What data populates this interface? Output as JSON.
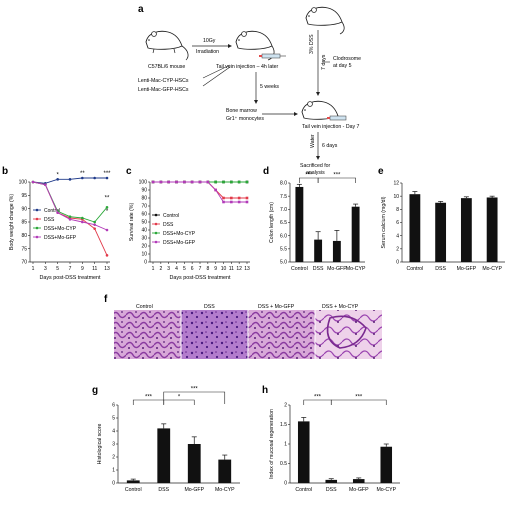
{
  "panel_labels": {
    "a": "a",
    "b": "b",
    "c": "c",
    "d": "d",
    "e": "e",
    "f": "f",
    "g": "g",
    "h": "h"
  },
  "schematic": {
    "mouse_strain": "C57BL/6 mouse",
    "dose": "10Gy",
    "irradiation": "Irradiation",
    "injection": "Tail vein injection – 4h later",
    "hsc_cyp": "Lenti-Mac-CYP-HSCs",
    "hsc_gfp": "Lenti-Mac-GFP-HSCs",
    "weeks": "5 weeks",
    "bone_marrow": "Bone marrow",
    "monocytes": "Gr1⁺ monocytes",
    "dss": "3% DSS",
    "days7": "7 days",
    "clodrosome": "Clodrosome",
    "clodrosome_day": "at day 5",
    "injection_day7": "Tail vein injection - Day 7",
    "water": "Water",
    "days6": "6 days",
    "sacrificed": "Sacrificed for",
    "analysis": "analysis"
  },
  "histology": {
    "labels": [
      "Control",
      "DSS",
      "DSS + Mo-GFP",
      "DSS + Mo-CYP"
    ]
  },
  "chart_data": [
    {
      "id": "b",
      "type": "line",
      "ylabel": "Body weight change (%)",
      "xlabel": "Days post-DSS treatment",
      "x": [
        1,
        3,
        5,
        7,
        9,
        11,
        13
      ],
      "ylim": [
        70,
        100
      ],
      "yticks": [
        "70",
        "75",
        "80",
        "85",
        "90",
        "95",
        "100"
      ],
      "xticks": [
        "1",
        "3",
        "5",
        "7",
        "9",
        "11",
        "13"
      ],
      "series": [
        {
          "name": "Control",
          "color": "#1f3a8a",
          "values": [
            100,
            99.5,
            101,
            101,
            101.5,
            101.5,
            101.5
          ]
        },
        {
          "name": "DSS",
          "color": "#e23a4a",
          "values": [
            100,
            99,
            88.5,
            86.5,
            86,
            82.5,
            72.5
          ]
        },
        {
          "name": "DSS+Mo-CYP",
          "color": "#2aa838",
          "values": [
            100,
            99,
            89,
            87,
            86.5,
            85,
            90.5
          ]
        },
        {
          "name": "DSS+Mo-GFP",
          "color": "#b23ab8",
          "values": [
            100,
            99,
            88.5,
            86,
            85,
            84,
            82
          ]
        }
      ],
      "annotations": [
        "*",
        "**",
        "***",
        "**",
        "*"
      ]
    },
    {
      "id": "c",
      "type": "line",
      "ylabel": "Survival rate (%)",
      "xlabel": "Days post-DSS treatment",
      "x": [
        1,
        2,
        3,
        4,
        5,
        6,
        7,
        8,
        9,
        10,
        11,
        12,
        13
      ],
      "ylim": [
        0,
        100
      ],
      "yticks": [
        "0",
        "10",
        "20",
        "30",
        "40",
        "50",
        "60",
        "70",
        "80",
        "90",
        "100"
      ],
      "xticks": [
        "1",
        "2",
        "3",
        "4",
        "5",
        "6",
        "7",
        "8",
        "9",
        "10",
        "11",
        "12",
        "13"
      ],
      "series": [
        {
          "name": "Control",
          "color": "#111111",
          "values": [
            100,
            100,
            100,
            100,
            100,
            100,
            100,
            100,
            100,
            100,
            100,
            100,
            100
          ]
        },
        {
          "name": "DSS",
          "color": "#e23a4a",
          "values": [
            100,
            100,
            100,
            100,
            100,
            100,
            100,
            100,
            90,
            80,
            80,
            80,
            80
          ]
        },
        {
          "name": "DSS+Mo-CYP",
          "color": "#2aa838",
          "values": [
            100,
            100,
            100,
            100,
            100,
            100,
            100,
            100,
            100,
            100,
            100,
            100,
            100
          ]
        },
        {
          "name": "DSS+Mo-GFP",
          "color": "#b23ab8",
          "values": [
            100,
            100,
            100,
            100,
            100,
            100,
            100,
            100,
            90,
            75,
            75,
            75,
            75
          ]
        }
      ]
    },
    {
      "id": "d",
      "type": "bar",
      "ylabel": "Colon length (cm)",
      "categories": [
        "Control",
        "DSS",
        "Mo-GFP",
        "Mo-CYP"
      ],
      "values": [
        7.85,
        5.85,
        5.8,
        7.1
      ],
      "errors": [
        0.1,
        0.3,
        0.4,
        0.1
      ],
      "ylim": [
        5.0,
        8.0
      ],
      "yticks": [
        "5.0",
        "5.5",
        "6.0",
        "6.5",
        "7.0",
        "7.5",
        "8.0"
      ],
      "sig": [
        "***",
        "***"
      ]
    },
    {
      "id": "e",
      "type": "bar",
      "ylabel": "Serum calcium (mg/dl)",
      "categories": [
        "Control",
        "DSS",
        "Mo-GFP",
        "Mo-CYP"
      ],
      "values": [
        10.3,
        9.0,
        9.7,
        9.8
      ],
      "errors": [
        0.4,
        0.2,
        0.2,
        0.2
      ],
      "ylim": [
        0,
        12
      ],
      "yticks": [
        "0",
        "2",
        "4",
        "6",
        "8",
        "10",
        "12"
      ]
    },
    {
      "id": "g",
      "type": "bar",
      "ylabel": "Histological score",
      "categories": [
        "Control",
        "DSS",
        "Mo-GFP",
        "Mo-CYP"
      ],
      "values": [
        0.2,
        4.2,
        3.0,
        1.8
      ],
      "errors": [
        0.1,
        0.35,
        0.55,
        0.35
      ],
      "ylim": [
        0,
        6
      ],
      "yticks": [
        "0",
        "1",
        "2",
        "3",
        "4",
        "5",
        "6"
      ],
      "sig": [
        "***",
        "*",
        "***"
      ]
    },
    {
      "id": "h",
      "type": "bar",
      "ylabel": "Index of mucosal regeneration",
      "categories": [
        "Control",
        "DSS",
        "Mo-GFP",
        "Mo-CYP"
      ],
      "values": [
        1.58,
        0.08,
        0.1,
        0.93
      ],
      "errors": [
        0.1,
        0.03,
        0.03,
        0.07
      ],
      "ylim": [
        0,
        2
      ],
      "yticks": [
        "0",
        "0.5",
        "1",
        "1.5",
        "2"
      ],
      "sig": [
        "***",
        "***"
      ]
    }
  ]
}
